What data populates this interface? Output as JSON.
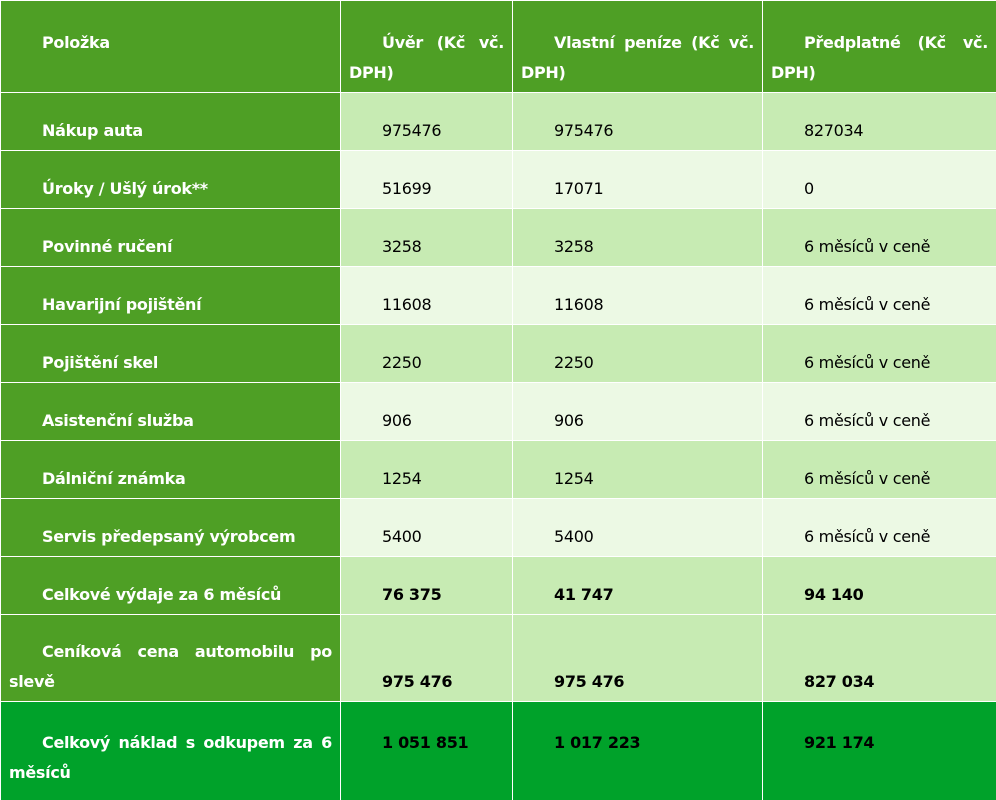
{
  "table": {
    "header": [
      "Položka",
      "Úvěr (Kč vč. DPH)",
      "Vlastní peníze (Kč vč. DPH)",
      "Předplatné (Kč vč. DPH)"
    ],
    "rows": [
      [
        "Nákup auta",
        "975476",
        "975476",
        "827034"
      ],
      [
        "Úroky / Ušlý úrok**",
        "51699",
        "17071",
        "0"
      ],
      [
        "Povinné ručení",
        "3258",
        "3258",
        "6 měsíců v ceně"
      ],
      [
        "Havarijní pojištění",
        "11608",
        "11608",
        "6 měsíců v ceně"
      ],
      [
        "Pojištění skel",
        "2250",
        "2250",
        "6 měsíců v ceně"
      ],
      [
        "Asistenční služba",
        "906",
        "906",
        "6 měsíců v ceně"
      ],
      [
        "Dálniční známka",
        "1254",
        "1254",
        "6 měsíců v ceně"
      ],
      [
        "Servis předepsaný výrobcem",
        "5400",
        "5400",
        "6 měsíců v ceně"
      ],
      [
        "Celkové výdaje za 6 měsíců",
        "76 375",
        "41 747",
        "94 140"
      ],
      [
        "Ceníková cena automobilu po slevě",
        "975 476",
        "975 476",
        "827 034"
      ],
      [
        "Celkový náklad s odkupem za 6 měsíců",
        "1 051 851",
        "1 017 223",
        "921 174"
      ]
    ]
  }
}
